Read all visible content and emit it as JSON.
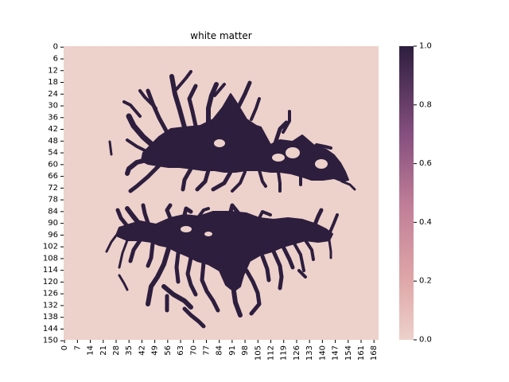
{
  "chart_data": {
    "type": "heatmap",
    "title": "white matter",
    "xlabel": "",
    "ylabel": "",
    "x_range": [
      0,
      171
    ],
    "y_range": [
      0,
      150
    ],
    "x_tick_labels": [
      "0",
      "7",
      "14",
      "21",
      "28",
      "35",
      "42",
      "49",
      "56",
      "63",
      "70",
      "77",
      "84",
      "91",
      "98",
      "105",
      "112",
      "119",
      "126",
      "133",
      "140",
      "147",
      "154",
      "161",
      "168"
    ],
    "y_tick_labels": [
      "0",
      "6",
      "12",
      "18",
      "24",
      "30",
      "36",
      "42",
      "48",
      "54",
      "60",
      "66",
      "72",
      "78",
      "84",
      "90",
      "96",
      "102",
      "108",
      "114",
      "120",
      "126",
      "132",
      "138",
      "144",
      "150"
    ],
    "value_range": [
      0.0,
      1.0
    ],
    "colorbar_tick_labels": [
      "0.0",
      "0.2",
      "0.4",
      "0.6",
      "0.8",
      "1.0"
    ],
    "colors": {
      "low": "#edd1cb",
      "mid": "#b86e8e",
      "high": "#2d1e3e"
    },
    "description_of_values": "binary mask: 1 = white matter (dark), 0 = background (light)"
  }
}
